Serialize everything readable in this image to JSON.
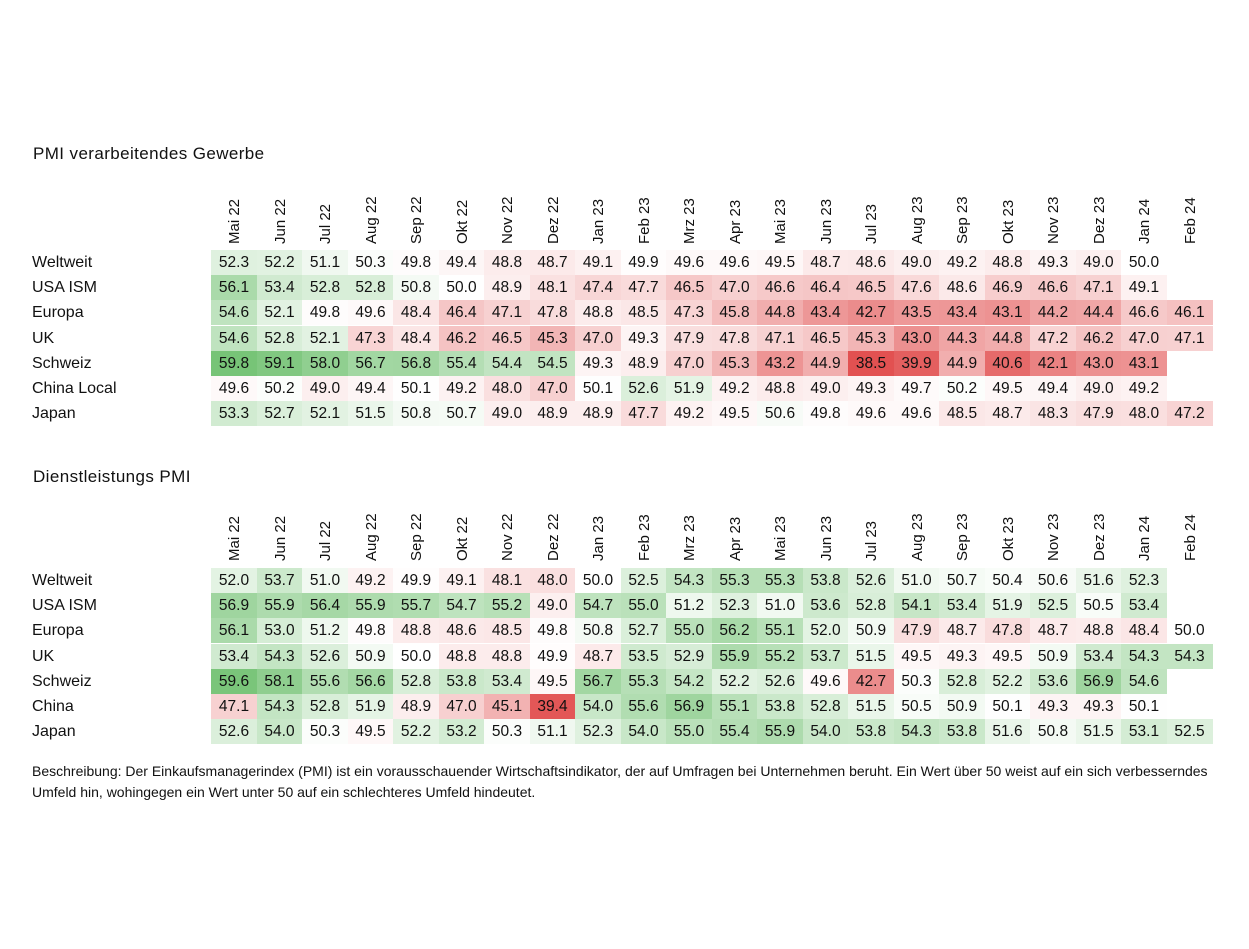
{
  "months": [
    "Mai 22",
    "Jun 22",
    "Jul 22",
    "Aug 22",
    "Sep 22",
    "Okt 22",
    "Nov 22",
    "Dez 22",
    "Jan 23",
    "Feb 23",
    "Mrz 23",
    "Apr 23",
    "Mai 23",
    "Jun 23",
    "Jul 23",
    "Aug 23",
    "Sep 23",
    "Okt 23",
    "Nov 23",
    "Dez 23",
    "Jan 24",
    "Feb 24"
  ],
  "manufacturing": {
    "title": "PMI verarbeitendes Gewerbe",
    "rows": [
      {
        "name": "Weltweit",
        "values": [
          52.3,
          52.2,
          51.1,
          50.3,
          49.8,
          49.4,
          48.8,
          48.7,
          49.1,
          49.9,
          49.6,
          49.6,
          49.5,
          48.7,
          48.6,
          49.0,
          49.2,
          48.8,
          49.3,
          49.0,
          50.0,
          null
        ]
      },
      {
        "name": "USA ISM",
        "values": [
          56.1,
          53.4,
          52.8,
          52.8,
          50.8,
          50.0,
          48.9,
          48.1,
          47.4,
          47.7,
          46.5,
          47.0,
          46.6,
          46.4,
          46.5,
          47.6,
          48.6,
          46.9,
          46.6,
          47.1,
          49.1,
          null
        ]
      },
      {
        "name": "Europa",
        "values": [
          54.6,
          52.1,
          49.8,
          49.6,
          48.4,
          46.4,
          47.1,
          47.8,
          48.8,
          48.5,
          47.3,
          45.8,
          44.8,
          43.4,
          42.7,
          43.5,
          43.4,
          43.1,
          44.2,
          44.4,
          46.6,
          46.1
        ]
      },
      {
        "name": "UK",
        "values": [
          54.6,
          52.8,
          52.1,
          47.3,
          48.4,
          46.2,
          46.5,
          45.3,
          47.0,
          49.3,
          47.9,
          47.8,
          47.1,
          46.5,
          45.3,
          43.0,
          44.3,
          44.8,
          47.2,
          46.2,
          47.0,
          47.1
        ]
      },
      {
        "name": "Schweiz",
        "values": [
          59.8,
          59.1,
          58.0,
          56.7,
          56.8,
          55.4,
          54.4,
          54.5,
          49.3,
          48.9,
          47.0,
          45.3,
          43.2,
          44.9,
          38.5,
          39.9,
          44.9,
          40.6,
          42.1,
          43.0,
          43.1,
          null
        ]
      },
      {
        "name": "China Local",
        "values": [
          49.6,
          50.2,
          49.0,
          49.4,
          50.1,
          49.2,
          48.0,
          47.0,
          50.1,
          52.6,
          51.9,
          49.2,
          48.8,
          49.0,
          49.3,
          49.7,
          50.2,
          49.5,
          49.4,
          49.0,
          49.2,
          null
        ]
      },
      {
        "name": "Japan",
        "values": [
          53.3,
          52.7,
          52.1,
          51.5,
          50.8,
          50.7,
          49.0,
          48.9,
          48.9,
          47.7,
          49.2,
          49.5,
          50.6,
          49.8,
          49.6,
          49.6,
          48.5,
          48.7,
          48.3,
          47.9,
          48.0,
          47.2
        ]
      }
    ]
  },
  "services": {
    "title": "Dienstleistungs PMI",
    "rows": [
      {
        "name": "Weltweit",
        "values": [
          52.0,
          53.7,
          51.0,
          49.2,
          49.9,
          49.1,
          48.1,
          48.0,
          50.0,
          52.5,
          54.3,
          55.3,
          55.3,
          53.8,
          52.6,
          51.0,
          50.7,
          50.4,
          50.6,
          51.6,
          52.3,
          null
        ]
      },
      {
        "name": "USA ISM",
        "values": [
          56.9,
          55.9,
          56.4,
          55.9,
          55.7,
          54.7,
          55.2,
          49.0,
          54.7,
          55.0,
          51.2,
          52.3,
          51.0,
          53.6,
          52.8,
          54.1,
          53.4,
          51.9,
          52.5,
          50.5,
          53.4,
          null
        ]
      },
      {
        "name": "Europa",
        "values": [
          56.1,
          53.0,
          51.2,
          49.8,
          48.8,
          48.6,
          48.5,
          49.8,
          50.8,
          52.7,
          55.0,
          56.2,
          55.1,
          52.0,
          50.9,
          47.9,
          48.7,
          47.8,
          48.7,
          48.8,
          48.4,
          50.0
        ]
      },
      {
        "name": "UK",
        "values": [
          53.4,
          54.3,
          52.6,
          50.9,
          50.0,
          48.8,
          48.8,
          49.9,
          48.7,
          53.5,
          52.9,
          55.9,
          55.2,
          53.7,
          51.5,
          49.5,
          49.3,
          49.5,
          50.9,
          53.4,
          54.3,
          54.3
        ]
      },
      {
        "name": "Schweiz",
        "values": [
          59.6,
          58.1,
          55.6,
          56.6,
          52.8,
          53.8,
          53.4,
          49.5,
          56.7,
          55.3,
          54.2,
          52.2,
          52.6,
          49.6,
          42.7,
          50.3,
          52.8,
          52.2,
          53.6,
          56.9,
          54.6,
          null
        ]
      },
      {
        "name": "China",
        "values": [
          47.1,
          54.3,
          52.8,
          51.9,
          48.9,
          47.0,
          45.1,
          39.4,
          54.0,
          55.6,
          56.9,
          55.1,
          53.8,
          52.8,
          51.5,
          50.5,
          50.9,
          50.1,
          49.3,
          49.3,
          50.1,
          null
        ]
      },
      {
        "name": "Japan",
        "values": [
          52.6,
          54.0,
          50.3,
          49.5,
          52.2,
          53.2,
          50.3,
          51.1,
          52.3,
          54.0,
          55.0,
          55.4,
          55.9,
          54.0,
          53.8,
          54.3,
          53.8,
          51.6,
          50.8,
          51.5,
          53.1,
          52.5
        ]
      }
    ]
  },
  "footnote": "Beschreibung: Der Einkaufsmanagerindex (PMI) ist ein vorausschauender Wirtschaftsindikator, der auf Umfragen bei Unternehmen beruht. Ein Wert über 50 weist auf ein sich verbesserndes Umfeld hin, wohingegen ein Wert unter 50 auf ein schlechteres Umfeld hindeutet.",
  "colors": {
    "positive": "#5cb85c",
    "negative": "#e04848",
    "neutral": "#ffffff"
  },
  "chart_data": [
    {
      "type": "heatmap",
      "title": "PMI verarbeitendes Gewerbe",
      "x": [
        "Mai 22",
        "Jun 22",
        "Jul 22",
        "Aug 22",
        "Sep 22",
        "Okt 22",
        "Nov 22",
        "Dez 22",
        "Jan 23",
        "Feb 23",
        "Mrz 23",
        "Apr 23",
        "Mai 23",
        "Jun 23",
        "Jul 23",
        "Aug 23",
        "Sep 23",
        "Okt 23",
        "Nov 23",
        "Dez 23",
        "Jan 24",
        "Feb 24"
      ],
      "y": [
        "Weltweit",
        "USA ISM",
        "Europa",
        "UK",
        "Schweiz",
        "China Local",
        "Japan"
      ],
      "values": [
        [
          52.3,
          52.2,
          51.1,
          50.3,
          49.8,
          49.4,
          48.8,
          48.7,
          49.1,
          49.9,
          49.6,
          49.6,
          49.5,
          48.7,
          48.6,
          49.0,
          49.2,
          48.8,
          49.3,
          49.0,
          50.0,
          null
        ],
        [
          56.1,
          53.4,
          52.8,
          52.8,
          50.8,
          50.0,
          48.9,
          48.1,
          47.4,
          47.7,
          46.5,
          47.0,
          46.6,
          46.4,
          46.5,
          47.6,
          48.6,
          46.9,
          46.6,
          47.1,
          49.1,
          null
        ],
        [
          54.6,
          52.1,
          49.8,
          49.6,
          48.4,
          46.4,
          47.1,
          47.8,
          48.8,
          48.5,
          47.3,
          45.8,
          44.8,
          43.4,
          42.7,
          43.5,
          43.4,
          43.1,
          44.2,
          44.4,
          46.6,
          46.1
        ],
        [
          54.6,
          52.8,
          52.1,
          47.3,
          48.4,
          46.2,
          46.5,
          45.3,
          47.0,
          49.3,
          47.9,
          47.8,
          47.1,
          46.5,
          45.3,
          43.0,
          44.3,
          44.8,
          47.2,
          46.2,
          47.0,
          47.1
        ],
        [
          59.8,
          59.1,
          58.0,
          56.7,
          56.8,
          55.4,
          54.4,
          54.5,
          49.3,
          48.9,
          47.0,
          45.3,
          43.2,
          44.9,
          38.5,
          39.9,
          44.9,
          40.6,
          42.1,
          43.0,
          43.1,
          null
        ],
        [
          49.6,
          50.2,
          49.0,
          49.4,
          50.1,
          49.2,
          48.0,
          47.0,
          50.1,
          52.6,
          51.9,
          49.2,
          48.8,
          49.0,
          49.3,
          49.7,
          50.2,
          49.5,
          49.4,
          49.0,
          49.2,
          null
        ],
        [
          53.3,
          52.7,
          52.1,
          51.5,
          50.8,
          50.7,
          49.0,
          48.9,
          48.9,
          47.7,
          49.2,
          49.5,
          50.6,
          49.8,
          49.6,
          49.6,
          48.5,
          48.7,
          48.3,
          47.9,
          48.0,
          47.2
        ]
      ]
    },
    {
      "type": "heatmap",
      "title": "Dienstleistungs PMI",
      "x": [
        "Mai 22",
        "Jun 22",
        "Jul 22",
        "Aug 22",
        "Sep 22",
        "Okt 22",
        "Nov 22",
        "Dez 22",
        "Jan 23",
        "Feb 23",
        "Mrz 23",
        "Apr 23",
        "Mai 23",
        "Jun 23",
        "Jul 23",
        "Aug 23",
        "Sep 23",
        "Okt 23",
        "Nov 23",
        "Dez 23",
        "Jan 24",
        "Feb 24"
      ],
      "y": [
        "Weltweit",
        "USA ISM",
        "Europa",
        "UK",
        "Schweiz",
        "China",
        "Japan"
      ],
      "values": [
        [
          52.0,
          53.7,
          51.0,
          49.2,
          49.9,
          49.1,
          48.1,
          48.0,
          50.0,
          52.5,
          54.3,
          55.3,
          55.3,
          53.8,
          52.6,
          51.0,
          50.7,
          50.4,
          50.6,
          51.6,
          52.3,
          null
        ],
        [
          56.9,
          55.9,
          56.4,
          55.9,
          55.7,
          54.7,
          55.2,
          49.0,
          54.7,
          55.0,
          51.2,
          52.3,
          51.0,
          53.6,
          52.8,
          54.1,
          53.4,
          51.9,
          52.5,
          50.5,
          53.4,
          null
        ],
        [
          56.1,
          53.0,
          51.2,
          49.8,
          48.8,
          48.6,
          48.5,
          49.8,
          50.8,
          52.7,
          55.0,
          56.2,
          55.1,
          52.0,
          50.9,
          47.9,
          48.7,
          47.8,
          48.7,
          48.8,
          48.4,
          50.0
        ],
        [
          53.4,
          54.3,
          52.6,
          50.9,
          50.0,
          48.8,
          48.8,
          49.9,
          48.7,
          53.5,
          52.9,
          55.9,
          55.2,
          53.7,
          51.5,
          49.5,
          49.3,
          49.5,
          50.9,
          53.4,
          54.3,
          54.3
        ],
        [
          59.6,
          58.1,
          55.6,
          56.6,
          52.8,
          53.8,
          53.4,
          49.5,
          56.7,
          55.3,
          54.2,
          52.2,
          52.6,
          49.6,
          42.7,
          50.3,
          52.8,
          52.2,
          53.6,
          56.9,
          54.6,
          null
        ],
        [
          47.1,
          54.3,
          52.8,
          51.9,
          48.9,
          47.0,
          45.1,
          39.4,
          54.0,
          55.6,
          56.9,
          55.1,
          53.8,
          52.8,
          51.5,
          50.5,
          50.9,
          50.1,
          49.3,
          49.3,
          50.1,
          null
        ],
        [
          52.6,
          54.0,
          50.3,
          49.5,
          52.2,
          53.2,
          50.3,
          51.1,
          52.3,
          54.0,
          55.0,
          55.4,
          55.9,
          54.0,
          53.8,
          54.3,
          53.8,
          51.6,
          50.8,
          51.5,
          53.1,
          52.5
        ]
      ]
    }
  ]
}
